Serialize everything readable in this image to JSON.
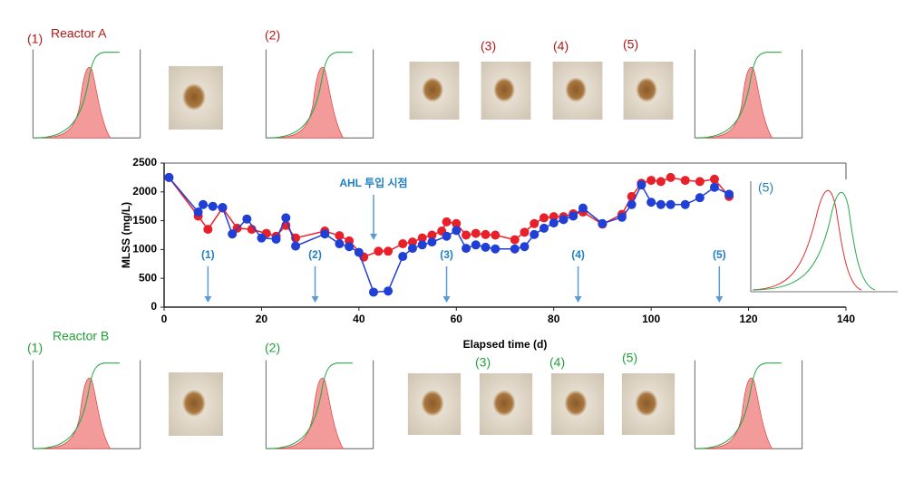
{
  "chart_data": {
    "type": "line",
    "y_label": "MLSS (mg/L)",
    "x_label": "Elapsed time (d)",
    "xlim": [
      0,
      140
    ],
    "xticks": [
      0,
      20,
      40,
      60,
      80,
      100,
      120,
      140
    ],
    "ylim": [
      0,
      2500
    ],
    "yticks": [
      0,
      500,
      1000,
      1500,
      2000,
      2500
    ],
    "series": [
      {
        "name": "Reactor A",
        "color": "#e8202a",
        "x": [
          1,
          7,
          9,
          12,
          15,
          18,
          21,
          23,
          25,
          27,
          33,
          36,
          38,
          41,
          44,
          46,
          49,
          51,
          53,
          55,
          57,
          58,
          60,
          62,
          64,
          66,
          68,
          72,
          74,
          76,
          78,
          80,
          82,
          84,
          86,
          90,
          94,
          96,
          98,
          100,
          102,
          104,
          107,
          110,
          113,
          116
        ],
        "values": [
          2250,
          1580,
          1350,
          1720,
          1370,
          1350,
          1280,
          1230,
          1420,
          1200,
          1320,
          1240,
          1150,
          870,
          970,
          970,
          1100,
          1130,
          1200,
          1250,
          1320,
          1480,
          1450,
          1250,
          1280,
          1260,
          1250,
          1170,
          1300,
          1450,
          1550,
          1570,
          1570,
          1620,
          1650,
          1440,
          1610,
          1920,
          2150,
          2200,
          2180,
          2250,
          2200,
          2180,
          2220,
          1920
        ]
      },
      {
        "name": "Reactor B",
        "color": "#1f3fd6",
        "x": [
          1,
          7,
          8,
          10,
          12,
          14,
          17,
          20,
          23,
          25,
          27,
          33,
          36,
          38,
          40,
          43,
          46,
          49,
          51,
          53,
          55,
          58,
          60,
          62,
          64,
          66,
          68,
          72,
          74,
          76,
          78,
          80,
          82,
          84,
          86,
          90,
          94,
          96,
          98,
          100,
          102,
          104,
          107,
          110,
          113,
          116
        ],
        "values": [
          2250,
          1650,
          1780,
          1750,
          1730,
          1270,
          1530,
          1200,
          1180,
          1550,
          1060,
          1270,
          1100,
          1050,
          950,
          260,
          280,
          880,
          1020,
          1080,
          1130,
          1230,
          1330,
          1020,
          1080,
          1040,
          1010,
          1010,
          1050,
          1260,
          1370,
          1460,
          1520,
          1580,
          1720,
          1450,
          1560,
          1780,
          2120,
          1820,
          1780,
          1780,
          1780,
          1900,
          2080,
          1960
        ]
      }
    ],
    "annotations": [
      {
        "text": "AHL 투입 시점",
        "x": 43
      },
      {
        "text": "(1)",
        "x": 9
      },
      {
        "text": "(2)",
        "x": 31
      },
      {
        "text": "(3)",
        "x": 58
      },
      {
        "text": "(4)",
        "x": 85
      },
      {
        "text": "(5)",
        "x": 114
      }
    ]
  },
  "panels": {
    "reactor_a": {
      "title": "Reactor A",
      "labels": [
        "(1)",
        "(2)",
        "(3)",
        "(4)",
        "(5)"
      ]
    },
    "reactor_b": {
      "title": "Reactor B",
      "labels": [
        "(1)",
        "(2)",
        "(3)",
        "(4)",
        "(5)"
      ]
    },
    "inset": {
      "label": "(5)"
    }
  }
}
